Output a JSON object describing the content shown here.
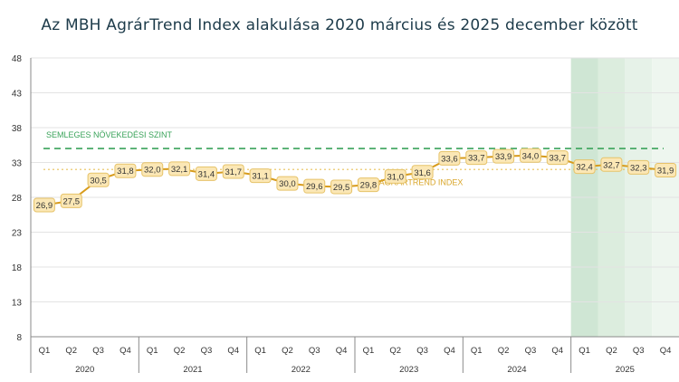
{
  "chart_data": {
    "type": "line",
    "title": "Az MBH AgrárTrend Index alakulása 2020 március és 2025 december között",
    "ylim": [
      8,
      48
    ],
    "yticks": [
      "8",
      "13",
      "18",
      "23",
      "28",
      "33",
      "38",
      "43",
      "48"
    ],
    "quarters": [
      "Q1",
      "Q2",
      "Q3",
      "Q4",
      "Q1",
      "Q2",
      "Q3",
      "Q4",
      "Q1",
      "Q2",
      "Q3",
      "Q4",
      "Q1",
      "Q2",
      "Q3",
      "Q4",
      "Q1",
      "Q2",
      "Q3",
      "Q4",
      "Q1",
      "Q2",
      "Q3",
      "Q4"
    ],
    "years": [
      "2020",
      "2021",
      "2022",
      "2023",
      "2024",
      "2025"
    ],
    "series": [
      {
        "name": "AGRÁRTREND INDEX",
        "color": "#f0b429",
        "values": [
          26.9,
          27.5,
          30.5,
          31.8,
          32.0,
          32.1,
          31.4,
          31.7,
          31.1,
          30.0,
          29.6,
          29.5,
          29.8,
          31.0,
          31.6,
          33.6,
          33.7,
          33.9,
          34.0,
          33.7,
          32.4,
          32.7,
          32.3,
          31.9
        ],
        "labels": [
          "26,9",
          "27,5",
          "30,5",
          "31,8",
          "32,0",
          "32,1",
          "31,4",
          "31,7",
          "31,1",
          "30,0",
          "29,6",
          "29,5",
          "29,8",
          "31,0",
          "31,6",
          "33,6",
          "33,7",
          "33,9",
          "34,0",
          "33,7",
          "32,4",
          "32,7",
          "32,3",
          "31,9"
        ]
      }
    ],
    "reference_lines": [
      {
        "name": "SEMLEGES NÖVEKEDÉSI SZINT",
        "value": 35,
        "color": "#3aa35a",
        "style": "dashed"
      },
      {
        "value": 32,
        "color": "#e8c25a",
        "style": "dotted"
      }
    ],
    "shaded_quarters": [
      {
        "index": 20,
        "color": "#cfe6d4"
      },
      {
        "index": 21,
        "color": "#dcedde"
      },
      {
        "index": 22,
        "color": "#e6f2e8"
      },
      {
        "index": 23,
        "color": "#eef6ef"
      }
    ],
    "grid": true
  }
}
